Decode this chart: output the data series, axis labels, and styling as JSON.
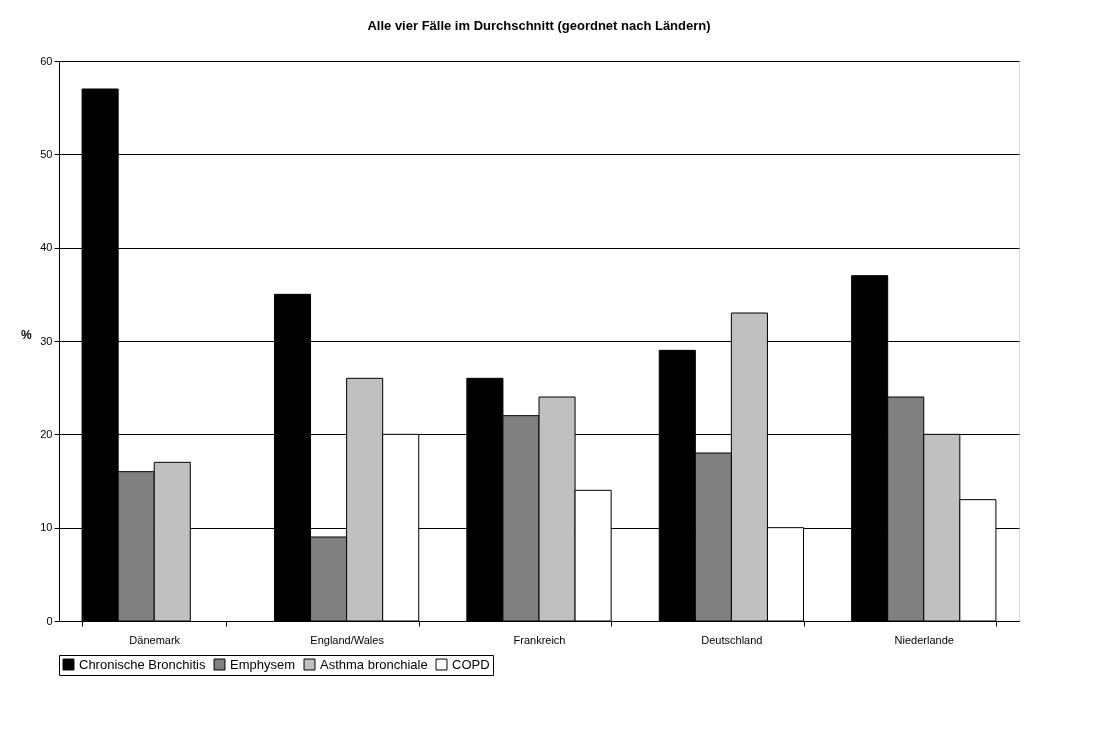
{
  "chart_data": {
    "type": "bar",
    "title": "Alle vier Fälle im Durchschnitt (geordnet nach Ländern)",
    "ylabel": "%",
    "categories": [
      "Dänemark",
      "England/Wales",
      "Frankreich",
      "Deutschland",
      "Niederlande"
    ],
    "series": [
      {
        "name": "Chronische Bronchitis",
        "color": "#000000",
        "values": [
          57,
          35,
          26,
          29,
          37
        ]
      },
      {
        "name": "Emphysem",
        "color": "#808080",
        "values": [
          16,
          9,
          22,
          18,
          24
        ]
      },
      {
        "name": "Asthma bronchiale",
        "color": "#c0c0c0",
        "values": [
          17,
          26,
          24,
          33,
          20
        ]
      },
      {
        "name": "COPD",
        "color": "#ffffff",
        "values": [
          null,
          20,
          14,
          10,
          13
        ]
      }
    ],
    "ylim": [
      0,
      60
    ],
    "yticks": [
      0,
      10,
      20,
      30,
      40,
      50,
      60
    ],
    "grid": "y",
    "legend": "bottom"
  }
}
